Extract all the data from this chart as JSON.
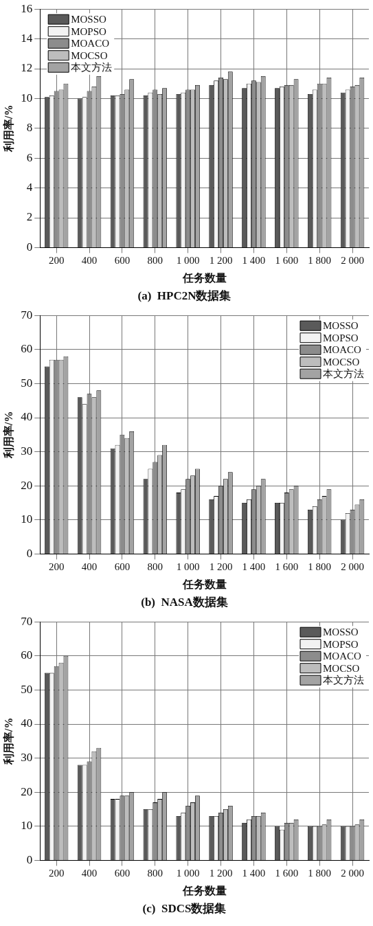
{
  "chart_data": [
    {
      "type": "bar",
      "title": "(a)  HPC2N数据集",
      "xlabel": "任务数量",
      "ylabel": "利用率/%",
      "categories": [
        "200",
        "400",
        "600",
        "800",
        "1 000",
        "1 200",
        "1 400",
        "1 600",
        "1 800",
        "2 000"
      ],
      "series": [
        {
          "name": "MOSSO",
          "color": "#5a5a5a",
          "values": [
            10.1,
            10.0,
            10.2,
            10.2,
            10.3,
            10.9,
            10.7,
            10.7,
            10.3,
            10.4
          ]
        },
        {
          "name": "MOPSO",
          "color": "#f2f2f2",
          "values": [
            10.2,
            10.1,
            10.2,
            10.4,
            10.4,
            11.2,
            11.0,
            10.8,
            10.6,
            10.6
          ]
        },
        {
          "name": "MOACO",
          "color": "#8c8c8c",
          "values": [
            10.5,
            10.5,
            10.3,
            10.6,
            10.6,
            11.4,
            11.2,
            10.9,
            11.0,
            10.8
          ]
        },
        {
          "name": "MOCSO",
          "color": "#bdbdbd",
          "values": [
            10.6,
            10.8,
            10.6,
            10.3,
            10.6,
            11.3,
            11.1,
            10.9,
            11.0,
            10.9
          ]
        },
        {
          "name": "本文方法",
          "color": "#a3a3a3",
          "values": [
            11.0,
            11.5,
            11.3,
            10.7,
            10.9,
            11.8,
            11.5,
            11.3,
            11.4,
            11.4
          ]
        }
      ],
      "ylim": [
        0,
        16
      ],
      "yticks": [
        0,
        2,
        4,
        6,
        8,
        10,
        12,
        14,
        16
      ],
      "grid": true,
      "legend": "top left"
    },
    {
      "type": "bar",
      "title": "(b)  NASA数据集",
      "xlabel": "任务数量",
      "ylabel": "利用率/%",
      "categories": [
        "200",
        "400",
        "600",
        "800",
        "1 000",
        "1 200",
        "1 400",
        "1 600",
        "1 800",
        "2 000"
      ],
      "series": [
        {
          "name": "MOSSO",
          "color": "#5a5a5a",
          "values": [
            55,
            46,
            31,
            22,
            18,
            16,
            15,
            15,
            13,
            10
          ]
        },
        {
          "name": "MOPSO",
          "color": "#f2f2f2",
          "values": [
            57,
            44,
            32,
            25,
            19,
            17,
            16,
            15,
            14,
            12
          ]
        },
        {
          "name": "MOACO",
          "color": "#8c8c8c",
          "values": [
            57,
            47,
            35,
            27,
            22,
            20,
            19,
            18,
            16,
            13
          ]
        },
        {
          "name": "MOCSO",
          "color": "#bdbdbd",
          "values": [
            57,
            46,
            34,
            29,
            23,
            22,
            20,
            19,
            17,
            14.5
          ]
        },
        {
          "name": "本文方法",
          "color": "#a3a3a3",
          "values": [
            58,
            48,
            36,
            32,
            25,
            24,
            22,
            20,
            19,
            16
          ]
        }
      ],
      "ylim": [
        0,
        70
      ],
      "yticks": [
        0,
        10,
        20,
        30,
        40,
        50,
        60,
        70
      ],
      "grid": true,
      "legend": "top right"
    },
    {
      "type": "bar",
      "title": "(c)  SDCS数据集",
      "xlabel": "任务数量",
      "ylabel": "利用率/%",
      "categories": [
        "200",
        "400",
        "600",
        "800",
        "1 000",
        "1 200",
        "1 400",
        "1 600",
        "1 800",
        "2 000"
      ],
      "series": [
        {
          "name": "MOSSO",
          "color": "#5a5a5a",
          "values": [
            55,
            28,
            18,
            15,
            13,
            13,
            11,
            10,
            10,
            10
          ]
        },
        {
          "name": "MOPSO",
          "color": "#f2f2f2",
          "values": [
            55,
            28,
            18,
            15,
            14,
            13,
            12,
            9,
            10,
            10
          ]
        },
        {
          "name": "MOACO",
          "color": "#8c8c8c",
          "values": [
            57,
            29,
            19,
            17,
            16,
            14,
            13,
            11,
            10,
            10
          ]
        },
        {
          "name": "MOCSO",
          "color": "#bdbdbd",
          "values": [
            58,
            32,
            19,
            18,
            17,
            15,
            13,
            11,
            10.5,
            10.5
          ]
        },
        {
          "name": "本文方法",
          "color": "#a3a3a3",
          "values": [
            60,
            33,
            20,
            20,
            19,
            16,
            14,
            12,
            12,
            12
          ]
        }
      ],
      "ylim": [
        0,
        70
      ],
      "yticks": [
        0,
        10,
        20,
        30,
        40,
        50,
        60,
        70
      ],
      "grid": true,
      "legend": "top right"
    }
  ]
}
